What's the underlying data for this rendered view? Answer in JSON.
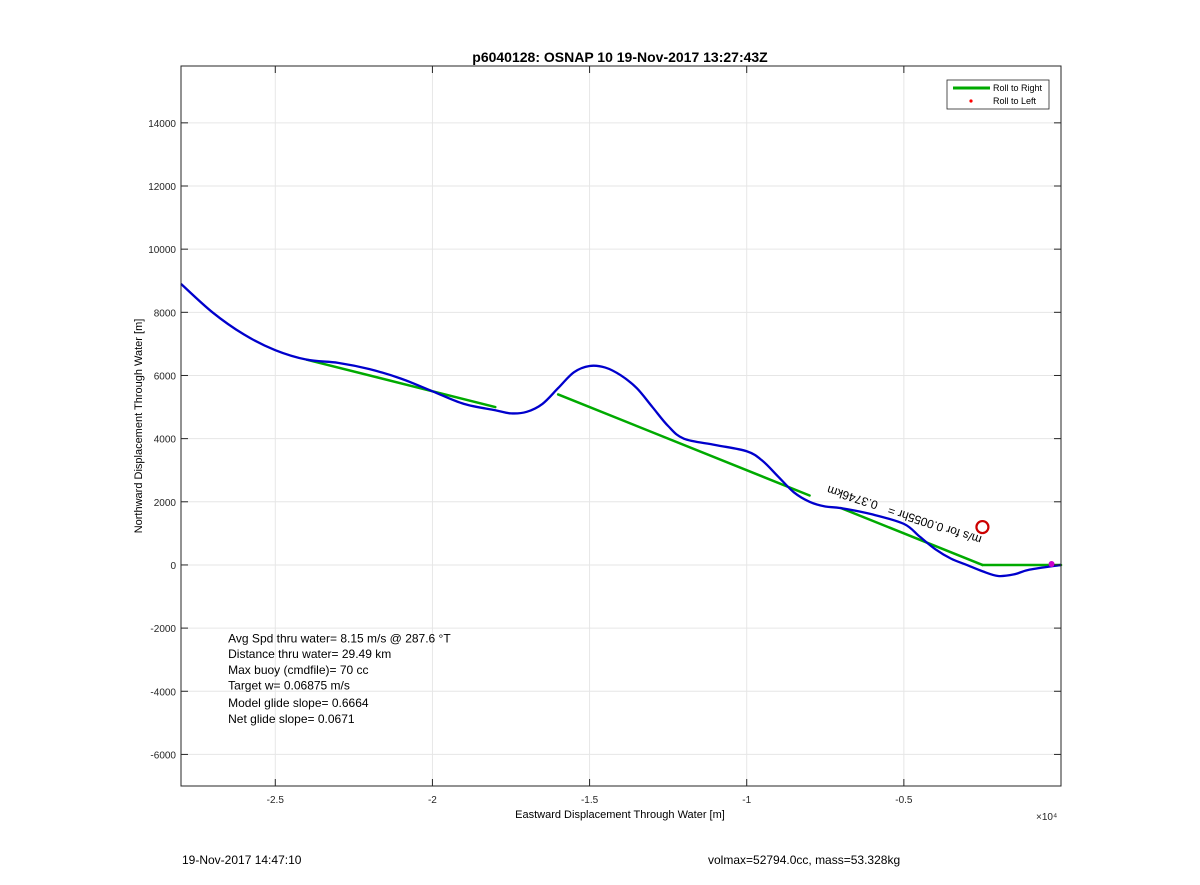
{
  "footer": {
    "timestamp": "19-Nov-2017 14:47:10",
    "vol_mass": "volmax=52794.0cc, mass=53.328kg"
  },
  "colors": {
    "track": "#0000cc",
    "roll_right": "#00aa00",
    "roll_left": "#ff0000",
    "marker": "#cc0000"
  },
  "chart_data": {
    "type": "line",
    "title": "p6040128: OSNAP 10 19-Nov-2017 13:27:43Z",
    "xlabel": "Eastward Displacement Through Water [m]",
    "ylabel": "Northward Displacement Through Water [m]",
    "x_exponent_label": "×10⁴",
    "xlim": [
      -28000,
      0
    ],
    "ylim": [
      -7000,
      15800
    ],
    "x_ticks": [
      -25000,
      -20000,
      -15000,
      -10000,
      -5000
    ],
    "x_tick_labels": [
      "-2.5",
      "-2",
      "-1.5",
      "-1",
      "-0.5"
    ],
    "y_ticks": [
      -6000,
      -4000,
      -2000,
      0,
      2000,
      4000,
      6000,
      8000,
      10000,
      12000,
      14000
    ],
    "y_tick_labels": [
      "-6000",
      "-4000",
      "-2000",
      "0",
      "2000",
      "4000",
      "6000",
      "8000",
      "10000",
      "12000",
      "14000"
    ],
    "grid": true,
    "legend_position": "top-right",
    "legend": [
      {
        "label": "Roll to Right",
        "style": "line",
        "color": "#00aa00"
      },
      {
        "label": "Roll to Left",
        "style": "dot",
        "color": "#ff0000"
      }
    ],
    "series": [
      {
        "name": "Roll to Right",
        "color": "#00aa00",
        "x": [
          -24000,
          -18000,
          -16000,
          -8000,
          -7000,
          -2500,
          0
        ],
        "y": [
          6500,
          5000,
          5400,
          2200,
          1800,
          0,
          0
        ],
        "segments": [
          [
            0,
            1
          ],
          [
            2,
            3
          ],
          [
            4,
            5
          ],
          [
            5,
            6
          ]
        ]
      },
      {
        "color": "#0000cc",
        "x": [
          -28000,
          -27000,
          -26000,
          -25000,
          -24000,
          -23000,
          -22000,
          -21000,
          -20000,
          -19000,
          -18000,
          -17500,
          -17000,
          -16500,
          -16000,
          -15500,
          -15000,
          -14500,
          -14000,
          -13500,
          -13000,
          -12500,
          -12000,
          -11000,
          -10000,
          -9500,
          -9000,
          -8500,
          -8000,
          -7500,
          -7000,
          -6000,
          -5000,
          -4500,
          -4000,
          -3500,
          -3000,
          -2500,
          -2000,
          -1500,
          -1000,
          0
        ],
        "y": [
          8900,
          8000,
          7300,
          6800,
          6500,
          6400,
          6200,
          5900,
          5500,
          5100,
          4900,
          4800,
          4850,
          5100,
          5600,
          6100,
          6300,
          6250,
          6000,
          5600,
          5000,
          4400,
          4000,
          3800,
          3600,
          3300,
          2800,
          2300,
          2000,
          1850,
          1800,
          1600,
          1300,
          900,
          500,
          200,
          0,
          -200,
          -350,
          -300,
          -150,
          0
        ]
      }
    ],
    "annotations": [
      {
        "text": "0.3746km",
        "x": -5800,
        "y": 2000,
        "rotation": 198
      },
      {
        "text": "m/s for 0.0055hr =",
        "x": -2500,
        "y": 900,
        "rotation": 198
      },
      {
        "text": "Avg Spd thru water=  8.15 m/s @ 287.6 °T",
        "x": -26500,
        "y": -2450
      },
      {
        "text": "Distance thru water= 29.49 km",
        "x": -26500,
        "y": -2950
      },
      {
        "text": "Max buoy (cmdfile)= 70 cc",
        "x": -26500,
        "y": -3450
      },
      {
        "text": "Target w= 0.06875 m/s",
        "x": -26500,
        "y": -3950
      },
      {
        "text": "Model glide slope= 0.6664",
        "x": -26500,
        "y": -4500
      },
      {
        "text": "Net glide slope= 0.0671",
        "x": -26500,
        "y": -5000
      }
    ],
    "markers": [
      {
        "kind": "circle",
        "x": -2500,
        "y": 1200,
        "color": "#cc0000"
      }
    ]
  }
}
